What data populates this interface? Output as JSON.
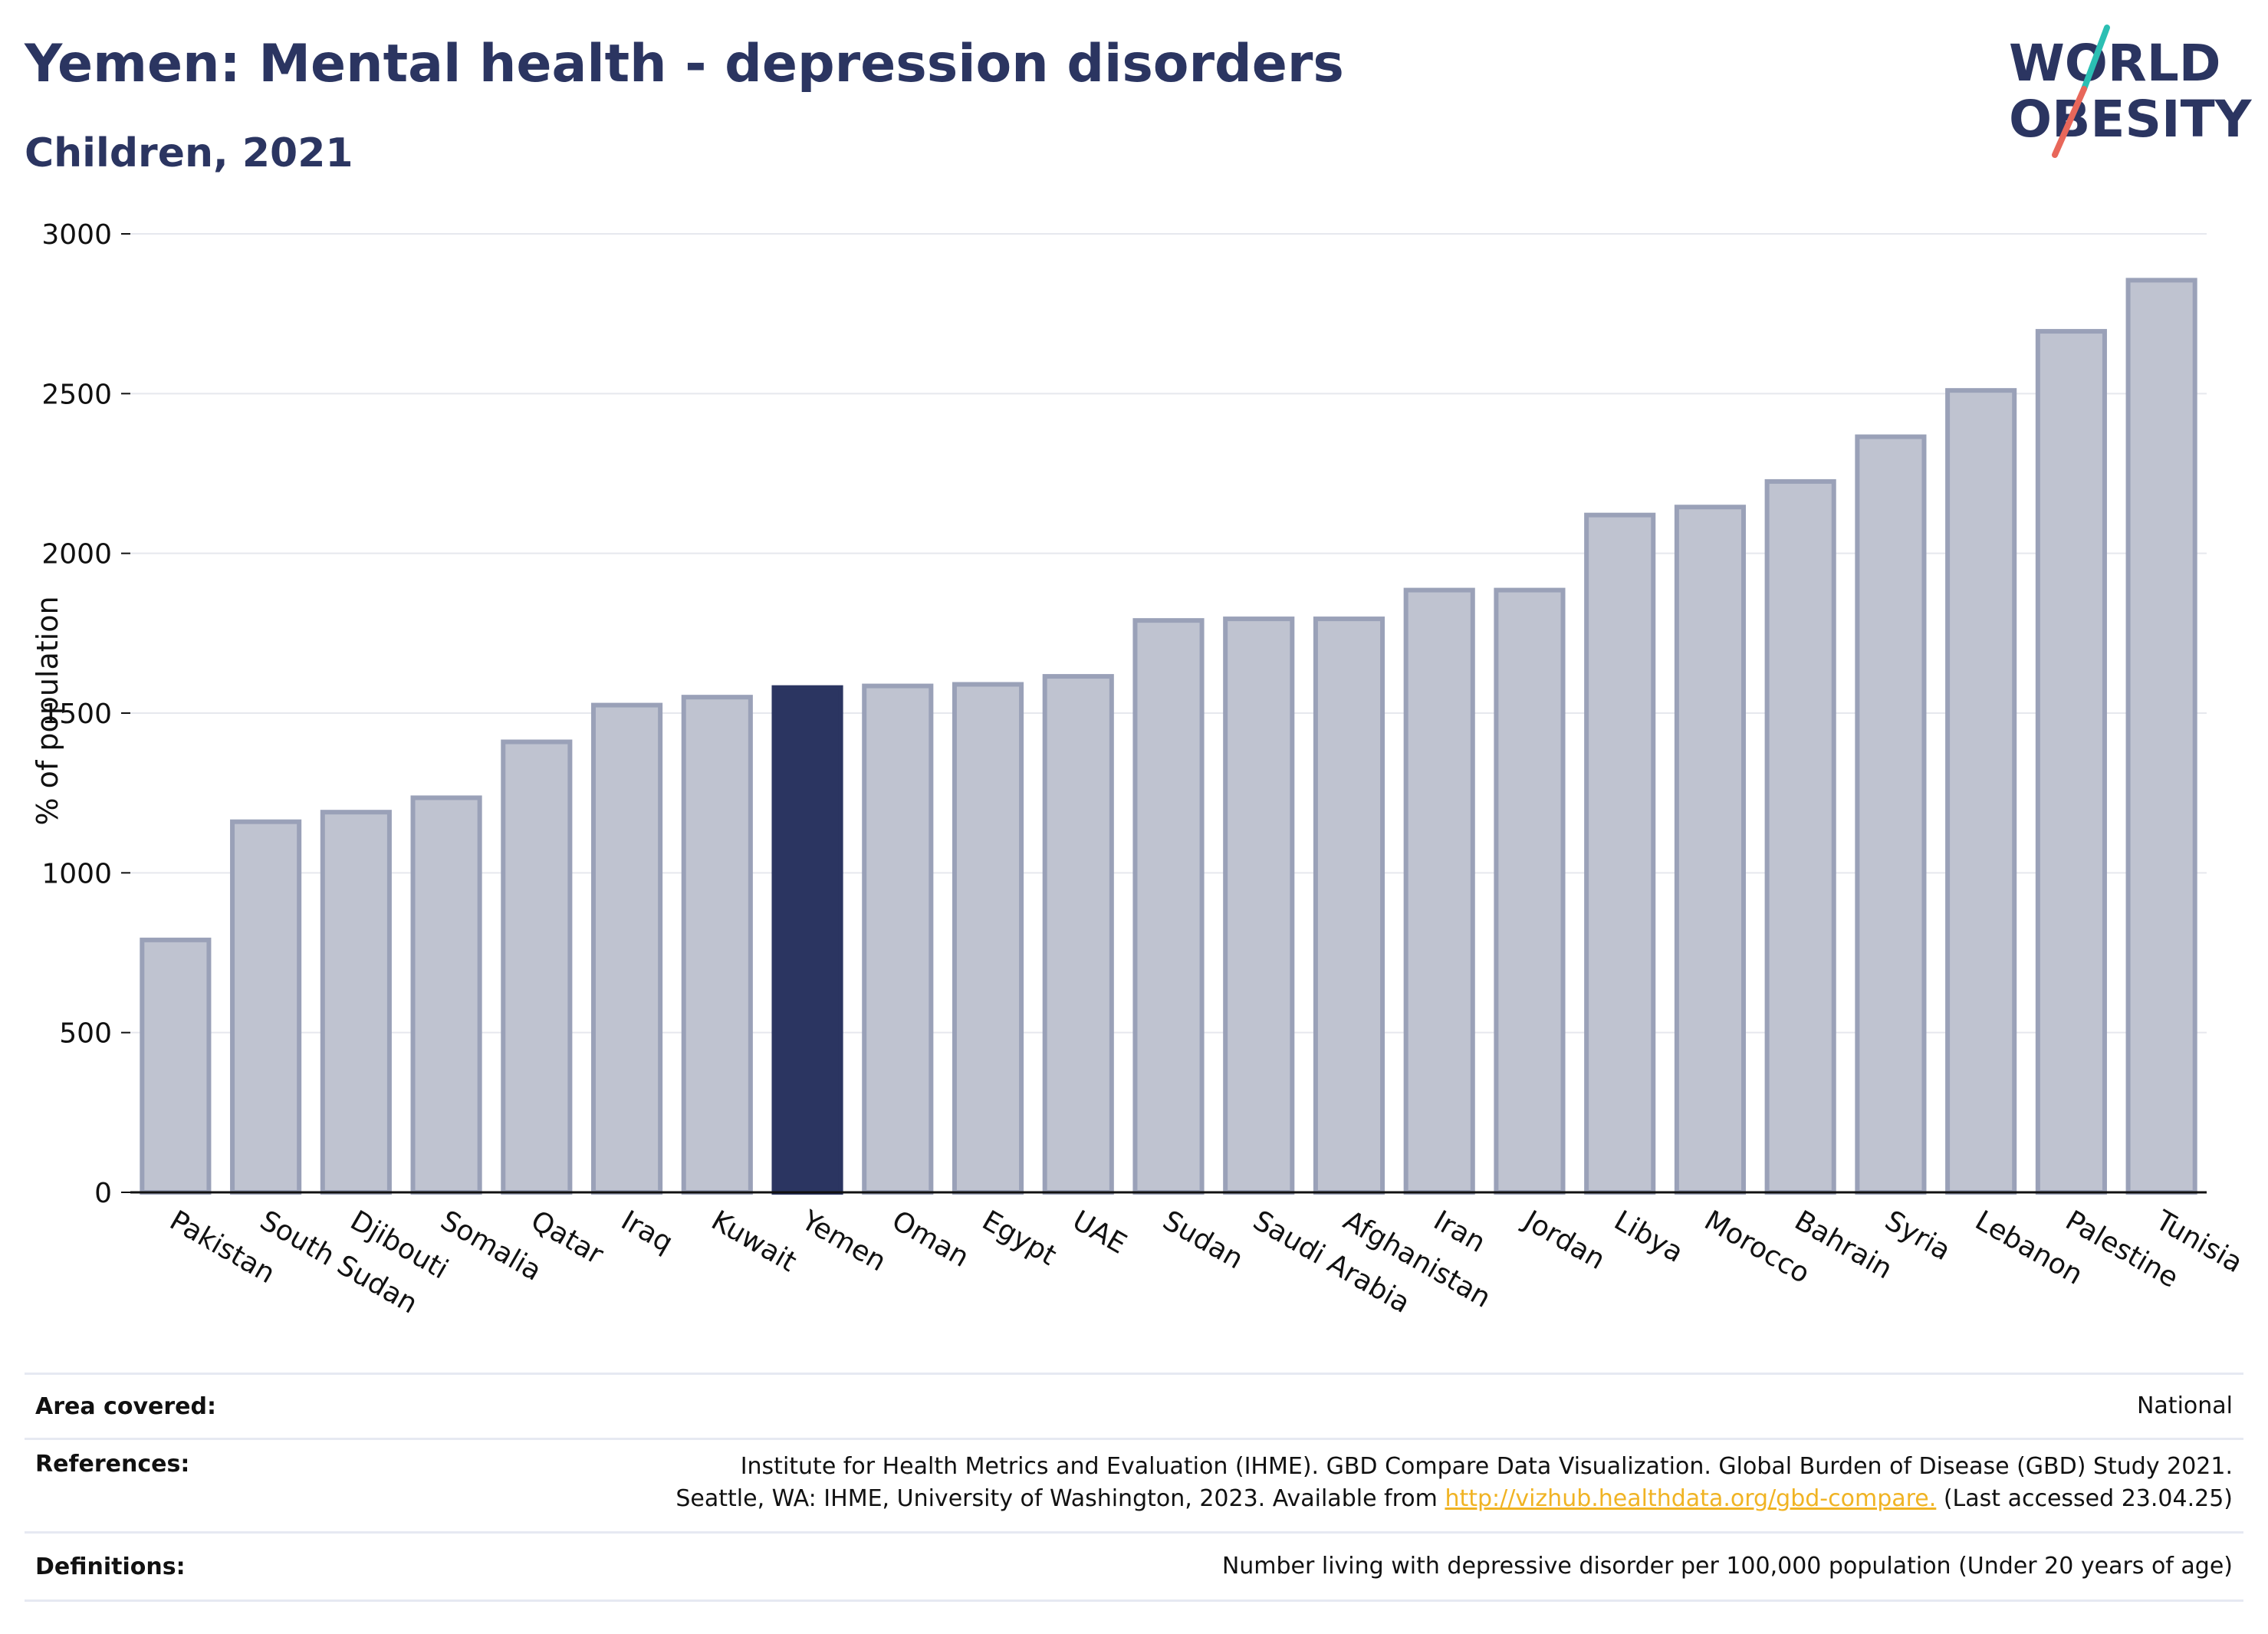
{
  "header": {
    "title": "Yemen: Mental health - depression disorders",
    "subtitle": "Children, 2021"
  },
  "logo": {
    "line1": "WORLD",
    "line2": "OBESITY",
    "colors": {
      "text": "#2b3561",
      "slash_top": "#2bbfb3",
      "slash_bottom": "#e8675a"
    }
  },
  "colors": {
    "highlight_bar": "#2b3561",
    "other_bar_fill": "#bfc3d0",
    "other_bar_stroke": "#9aa1b8",
    "gridline": "#e6e8ee"
  },
  "chart_data": {
    "type": "bar",
    "title": "Yemen: Mental health - depression disorders",
    "subtitle": "Children, 2021",
    "ylabel": "% of population",
    "xlabel": "",
    "ylim": [
      0,
      3000
    ],
    "yticks": [
      0,
      500,
      1000,
      1500,
      2000,
      2500,
      3000
    ],
    "grid": true,
    "highlight": "Yemen",
    "categories": [
      "Pakistan",
      "South Sudan",
      "Djibouti",
      "Somalia",
      "Qatar",
      "Iraq",
      "Kuwait",
      "Yemen",
      "Oman",
      "Egypt",
      "UAE",
      "Sudan",
      "Saudi Arabia",
      "Afghanistan",
      "Iran",
      "Jordan",
      "Libya",
      "Morocco",
      "Bahrain",
      "Syria",
      "Lebanon",
      "Palestine",
      "Tunisia"
    ],
    "values": [
      790,
      1160,
      1190,
      1235,
      1410,
      1525,
      1550,
      1580,
      1585,
      1590,
      1615,
      1790,
      1795,
      1795,
      1885,
      1885,
      2120,
      2145,
      2225,
      2365,
      2510,
      2695,
      2855
    ]
  },
  "info": {
    "area_label": "Area covered:",
    "area_value": "National",
    "references_label": "References:",
    "references_line1": "Institute for Health Metrics and Evaluation (IHME). GBD Compare Data Visualization. Global Burden of Disease (GBD) Study 2021.",
    "references_line2_prefix": "Seattle, WA: IHME, University of Washington, 2023. Available from",
    "references_link": "http://vizhub.healthdata.org/gbd-compare.",
    "references_suffix": "(Last accessed 23.04.25)",
    "definitions_label": "Definitions:",
    "definitions_value": "Number living with depressive disorder per 100,000 population (Under 20 years of age)"
  }
}
